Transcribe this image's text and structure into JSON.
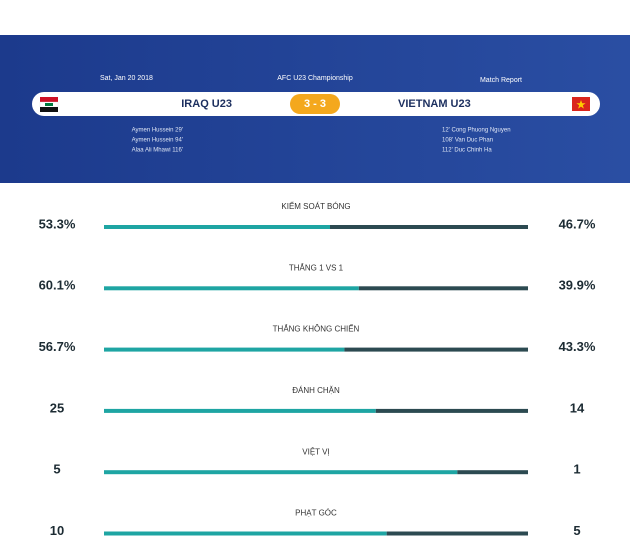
{
  "header": {
    "date": "Sat, Jan 20 2018",
    "competition": "AFC U23 Championship",
    "report": "Match Report",
    "home_team": "IRAQ U23",
    "away_team": "VIETNAM U23",
    "score": "3 - 3",
    "home_scorers": [
      "Aymen Hussein 29'",
      "Aymen Hussein 94'",
      "Alaa Ali Mhawi 116'"
    ],
    "away_scorers": [
      "12' Cong Phuong Nguyen",
      "108' Van Duc Phan",
      "112' Duc Chinh Ha"
    ]
  },
  "stats": [
    {
      "label": "KIỂM SOÁT BÓNG",
      "home": 53.3,
      "home_label": "53.3%",
      "away": 46.7,
      "away_label": "46.7%"
    },
    {
      "label": "THẮNG 1 VS 1",
      "home": 60.1,
      "home_label": "60.1%",
      "away": 39.9,
      "away_label": "39.9%"
    },
    {
      "label": "THẮNG KHÔNG CHIẾN",
      "home": 56.7,
      "home_label": "56.7%",
      "away": 43.3,
      "away_label": "43.3%"
    },
    {
      "label": "ĐÁNH CHẶN",
      "home": 25,
      "away": 14
    },
    {
      "label": "VIỆT VỊ",
      "home": 5,
      "away": 1
    },
    {
      "label": "PHẠT GÓC",
      "home": 10,
      "away": 5
    }
  ]
}
